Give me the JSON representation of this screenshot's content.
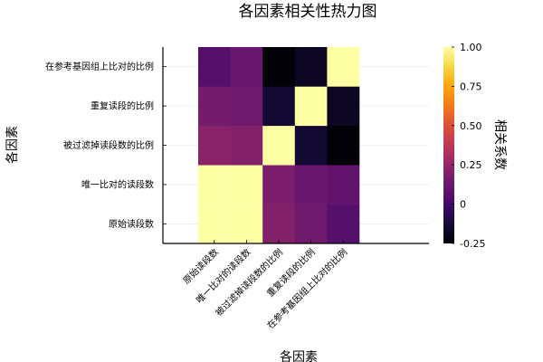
{
  "chart_data": {
    "type": "heatmap",
    "title": "各因素相关性热力图",
    "xlabel": "各因素",
    "ylabel": "各因素",
    "colorbar_label": "相关系数",
    "colormap": "inferno",
    "clim": [
      -0.25,
      1.0
    ],
    "colorbar_ticks": [
      "-0.25",
      "0",
      "0.25",
      "0.50",
      "0.75",
      "1.00"
    ],
    "colorbar_tick_values": [
      -0.25,
      0,
      0.25,
      0.5,
      0.75,
      1.0
    ],
    "x_categories": [
      "原始读段数",
      "唯一比对的读段数",
      "被过滤掉读段数的比例",
      "重复读段的比例",
      "在参考基因组上比对的比例"
    ],
    "y_categories": [
      "原始读段数",
      "唯一比对的读段数",
      "被过滤掉读段数的比例",
      "重复读段的比例",
      "在参考基因组上比对的比例"
    ],
    "values": [
      [
        1.0,
        1.0,
        0.2,
        0.14,
        0.06
      ],
      [
        1.0,
        1.0,
        0.18,
        0.12,
        0.1
      ],
      [
        0.22,
        0.2,
        1.0,
        -0.14,
        -0.24
      ],
      [
        0.16,
        0.14,
        -0.14,
        1.0,
        -0.18
      ],
      [
        0.06,
        0.12,
        -0.24,
        -0.18,
        1.0
      ]
    ],
    "grid": true,
    "legend": "colorbar-right"
  }
}
